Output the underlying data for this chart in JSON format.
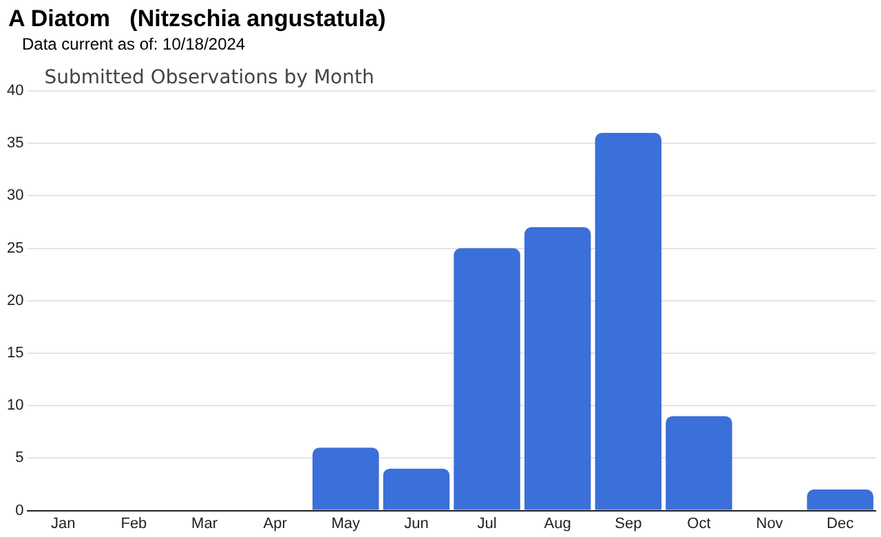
{
  "chart_data": {
    "type": "bar",
    "title": "A Diatom   (Nitzschia angustatula)",
    "subtitle": "Data current as of: 10/18/2024",
    "annotations": [
      "Submitted Observations by Month"
    ],
    "categories": [
      "Jan",
      "Feb",
      "Mar",
      "Apr",
      "May",
      "Jun",
      "Jul",
      "Aug",
      "Sep",
      "Oct",
      "Nov",
      "Dec"
    ],
    "values": [
      0,
      0,
      0,
      0,
      6,
      4,
      25,
      27,
      36,
      9,
      0,
      2
    ],
    "color": "#3b6fd9",
    "ylim": [
      0,
      40
    ],
    "yticks": [
      0,
      5,
      10,
      15,
      20,
      25,
      30,
      35,
      40
    ],
    "grid": "y",
    "legend": false
  }
}
